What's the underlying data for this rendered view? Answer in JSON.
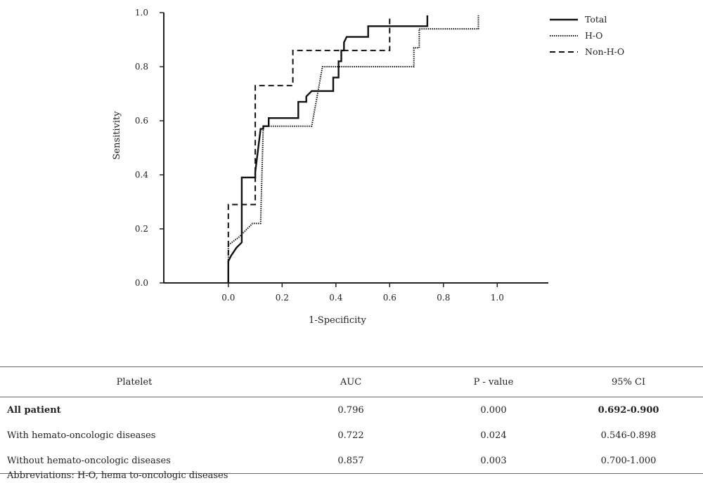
{
  "chart_data": {
    "type": "line",
    "xlabel": "1-Specificity",
    "ylabel": "Sensitivity",
    "xticks": [
      "0.0",
      "0.2",
      "0.4",
      "0.6",
      "0.8",
      "1.0"
    ],
    "yticks": [
      "0.0",
      "0.2",
      "0.4",
      "0.6",
      "0.8",
      "1.0"
    ],
    "xlim": [
      -0.24,
      1.19
    ],
    "ylim": [
      0,
      1.0
    ],
    "legend_position": "top-right",
    "series": [
      {
        "name": "Total",
        "style": "solid",
        "points": [
          [
            0.0,
            0.0
          ],
          [
            0.0,
            0.08
          ],
          [
            0.01,
            0.1
          ],
          [
            0.03,
            0.13
          ],
          [
            0.05,
            0.15
          ],
          [
            0.05,
            0.39
          ],
          [
            0.1,
            0.39
          ],
          [
            0.1,
            0.41
          ],
          [
            0.12,
            0.57
          ],
          [
            0.13,
            0.57
          ],
          [
            0.13,
            0.58
          ],
          [
            0.15,
            0.58
          ],
          [
            0.15,
            0.61
          ],
          [
            0.26,
            0.61
          ],
          [
            0.26,
            0.67
          ],
          [
            0.29,
            0.67
          ],
          [
            0.29,
            0.69
          ],
          [
            0.31,
            0.71
          ],
          [
            0.39,
            0.71
          ],
          [
            0.39,
            0.76
          ],
          [
            0.41,
            0.76
          ],
          [
            0.41,
            0.82
          ],
          [
            0.42,
            0.82
          ],
          [
            0.42,
            0.86
          ],
          [
            0.43,
            0.86
          ],
          [
            0.43,
            0.89
          ],
          [
            0.44,
            0.91
          ],
          [
            0.52,
            0.91
          ],
          [
            0.52,
            0.95
          ],
          [
            0.74,
            0.95
          ],
          [
            0.74,
            0.99
          ]
        ]
      },
      {
        "name": "H-O",
        "style": "dotted",
        "points": [
          [
            0.0,
            0.0
          ],
          [
            0.0,
            0.14
          ],
          [
            0.04,
            0.17
          ],
          [
            0.09,
            0.22
          ],
          [
            0.12,
            0.22
          ],
          [
            0.13,
            0.58
          ],
          [
            0.31,
            0.58
          ],
          [
            0.35,
            0.8
          ],
          [
            0.69,
            0.8
          ],
          [
            0.69,
            0.87
          ],
          [
            0.71,
            0.87
          ],
          [
            0.71,
            0.94
          ],
          [
            0.93,
            0.94
          ],
          [
            0.93,
            0.99
          ]
        ]
      },
      {
        "name": "Non-H-O",
        "style": "dashed",
        "points": [
          [
            0.0,
            0.0
          ],
          [
            0.0,
            0.29
          ],
          [
            0.1,
            0.29
          ],
          [
            0.1,
            0.73
          ],
          [
            0.24,
            0.73
          ],
          [
            0.24,
            0.86
          ],
          [
            0.6,
            0.86
          ],
          [
            0.6,
            0.99
          ]
        ]
      }
    ]
  },
  "table": {
    "headers": [
      "Platelet",
      "AUC",
      "P - value",
      "95% CI"
    ],
    "rows": [
      {
        "label": "All patient",
        "auc": "0.796",
        "p": "0.000",
        "ci": "0.692-0.900",
        "bold": true
      },
      {
        "label": "With hemato-oncologic diseases",
        "auc": "0.722",
        "p": "0.024",
        "ci": "0.546-0.898",
        "bold": false
      },
      {
        "label": "Without hemato-oncologic diseases",
        "auc": "0.857",
        "p": "0.003",
        "ci": "0.700-1.000",
        "bold": false
      }
    ]
  },
  "footnote": "Abbreviations: H-O, hema to-oncologic diseases"
}
